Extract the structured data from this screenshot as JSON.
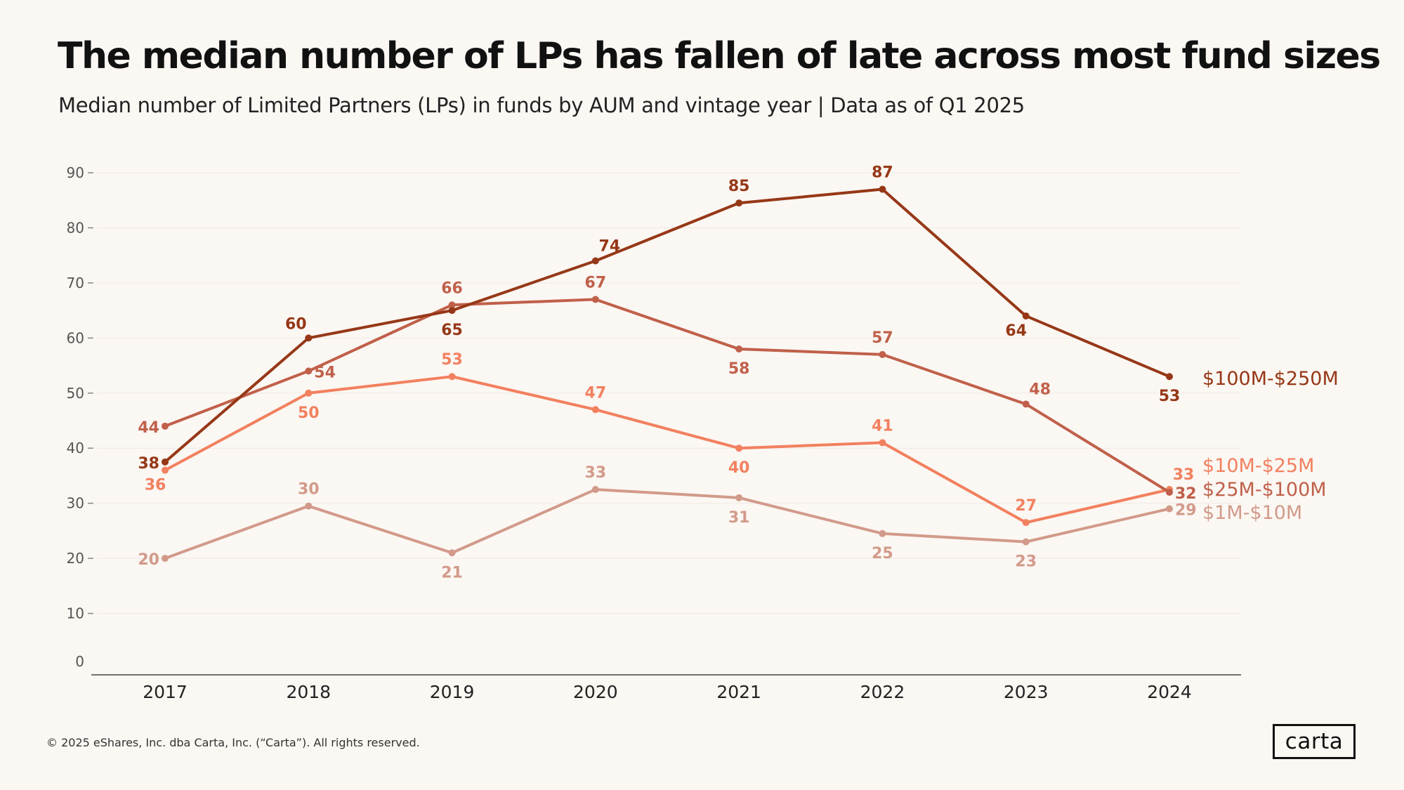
{
  "header": {
    "title": "The median number of LPs has fallen of late across most fund sizes",
    "subtitle": "Median number of Limited Partners (LPs) in funds by AUM and vintage year | Data as of Q1 2025"
  },
  "footer": {
    "copyright": "© 2025 eShares, Inc. dba Carta, Inc. (“Carta”). All rights reserved.",
    "logo": "carta"
  },
  "chart_data": {
    "type": "line",
    "title": "The median number of LPs has fallen of late across most fund sizes",
    "subtitle": "Median number of Limited Partners (LPs) in funds by AUM and vintage year | Data as of Q1 2025",
    "xlabel": "",
    "ylabel": "",
    "ylim": [
      0,
      90
    ],
    "yticks": [
      0,
      10,
      20,
      30,
      40,
      50,
      60,
      70,
      80,
      90
    ],
    "categories": [
      "2017",
      "2018",
      "2019",
      "2020",
      "2021",
      "2022",
      "2023",
      "2024"
    ],
    "grid": true,
    "legend": "direct labels at right end of lines",
    "series": [
      {
        "name": "$1M-$10M",
        "color": "#d29a8a",
        "values": [
          20,
          29.5,
          21,
          32.5,
          31,
          24.5,
          23,
          29
        ],
        "labels": [
          "20",
          "30",
          "21",
          "33",
          "31",
          "25",
          "23",
          "29"
        ],
        "label_pos": [
          "left",
          "above",
          "below",
          "above",
          "below",
          "below",
          "below",
          "right"
        ]
      },
      {
        "name": "$10M-$25M",
        "color": "#f2805f",
        "values": [
          36,
          50,
          53,
          47,
          40,
          41,
          26.5,
          32.5
        ],
        "labels": [
          "36",
          "50",
          "53",
          "47",
          "40",
          "41",
          "27",
          "33"
        ],
        "label_pos": [
          "below-left",
          "below",
          "above",
          "above",
          "below",
          "above",
          "above",
          "above-right"
        ]
      },
      {
        "name": "$25M-$100M",
        "color": "#c0604a",
        "values": [
          44,
          54,
          66,
          67,
          58,
          57,
          48,
          32
        ],
        "labels": [
          "44",
          "54",
          "66",
          "67",
          "58",
          "57",
          "48",
          "32"
        ],
        "label_pos": [
          "left",
          "right",
          "above",
          "above",
          "below",
          "above",
          "above-right",
          "right"
        ]
      },
      {
        "name": "$100M-$250M",
        "color": "#963817",
        "values": [
          37.5,
          60,
          65,
          74,
          84.5,
          87,
          64,
          53
        ],
        "labels": [
          "38",
          "60",
          "65",
          "74",
          "85",
          "87",
          "64",
          "53"
        ],
        "label_pos": [
          "left",
          "above-left",
          "below",
          "above-right",
          "above",
          "above",
          "below-left",
          "below"
        ]
      }
    ],
    "legend_entries": [
      {
        "name": "$100M-$250M",
        "color": "#963817"
      },
      {
        "name": "$10M-$25M",
        "color": "#f2805f"
      },
      {
        "name": "$25M-$100M",
        "color": "#c0604a"
      },
      {
        "name": "$1M-$10M",
        "color": "#d29a8a"
      }
    ]
  }
}
